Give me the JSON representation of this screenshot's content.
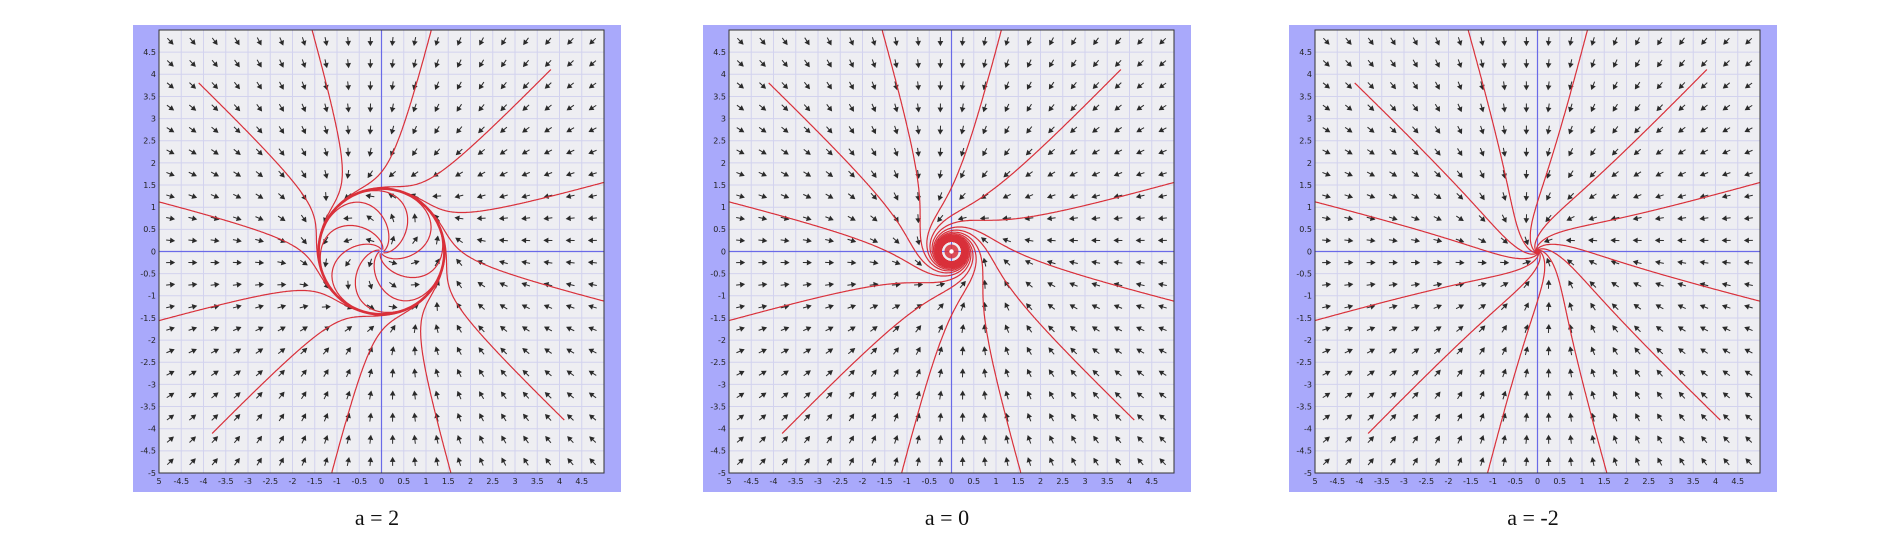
{
  "panels": [
    {
      "caption": "a = 2",
      "a": 2,
      "limit_cycle_radius": 1.414,
      "dense_core": false
    },
    {
      "caption": "a = 0",
      "a": 0,
      "limit_cycle_radius": 0,
      "dense_core": true
    },
    {
      "caption": "a = -2",
      "a": -2,
      "limit_cycle_radius": 0,
      "dense_core": false
    }
  ],
  "axes": {
    "xlim": [
      -5,
      5
    ],
    "ylim": [
      -5,
      5
    ],
    "x_ticks": [
      "5",
      "-4.5",
      "-4",
      "-3.5",
      "-3",
      "-2.5",
      "-2",
      "-1.5",
      "-1",
      "-0.5",
      "0",
      "0.5",
      "1",
      "1.5",
      "2",
      "2.5",
      "3",
      "3.5",
      "4",
      "4.5"
    ],
    "y_ticks": [
      "4.5",
      "4",
      "3.5",
      "3",
      "2.5",
      "2",
      "1.5",
      "1",
      "0.5",
      "0",
      "-0.5",
      "-1",
      "-1.5",
      "-2",
      "-2.5",
      "-3",
      "-3.5",
      "-4",
      "-4.5",
      "-5"
    ]
  },
  "colors": {
    "panel_border": "#a9a9fb",
    "plot_background": "#eeeef2",
    "grid": "#d2d2ee",
    "axes_lines": "#6a6ae8",
    "arrows": "#2b2b2b",
    "trajectories": "#d9303a"
  }
}
